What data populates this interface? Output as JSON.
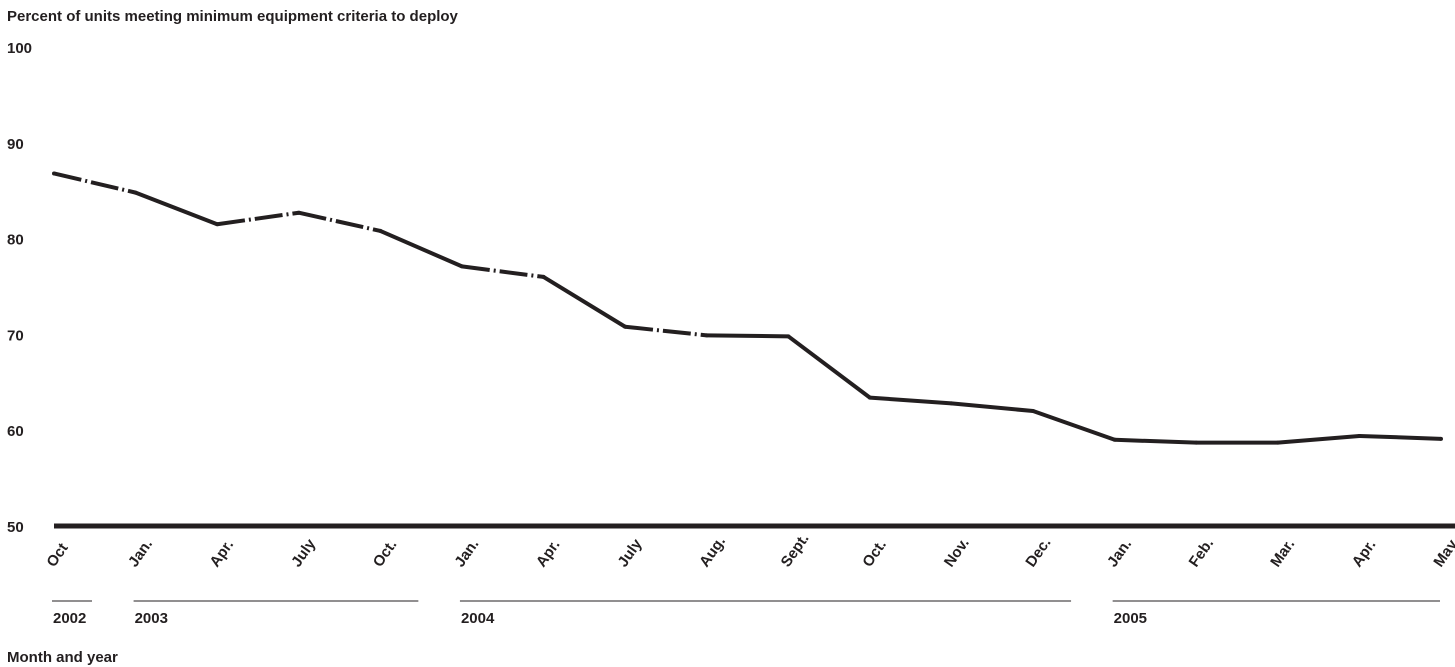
{
  "chart_data": {
    "type": "line",
    "title": "Percent of units meeting minimum equipment criteria to deploy",
    "xlabel": "Month and year",
    "ylabel": "",
    "ylim": [
      50,
      100
    ],
    "yticks": [
      "100",
      "90",
      "80",
      "70",
      "60",
      "50"
    ],
    "grid": false,
    "categories": [
      "Oct",
      "Jan.",
      "Apr.",
      "July",
      "Oct.",
      "Jan.",
      "Apr.",
      "July",
      "Aug.",
      "Sept.",
      "Oct.",
      "Nov.",
      "Dec.",
      "Jan.",
      "Feb.",
      "Mar.",
      "Apr.",
      "May"
    ],
    "series": [
      {
        "name": "",
        "values": [
          86.8,
          84.8,
          81.5,
          82.7,
          80.8,
          77.1,
          76.0,
          70.8,
          69.9,
          69.8,
          63.4,
          62.8,
          62.0,
          59.0,
          58.7,
          58.7,
          59.4,
          59.1
        ],
        "segment_styles": [
          "dash-dot",
          "solid",
          "dash-dot",
          "dash-dot",
          "solid",
          "dash-dot",
          "solid",
          "dash-dot",
          "solid",
          "solid",
          "solid",
          "solid",
          "solid",
          "solid",
          "solid",
          "solid",
          "solid"
        ]
      }
    ],
    "years": [
      {
        "label": "2002",
        "from": 0,
        "to": 0
      },
      {
        "label": "2003",
        "from": 1,
        "to": 4
      },
      {
        "label": "2004",
        "from": 5,
        "to": 12
      },
      {
        "label": "2005",
        "from": 13,
        "to": 17
      }
    ],
    "colors": {
      "line": "#231f20"
    }
  }
}
